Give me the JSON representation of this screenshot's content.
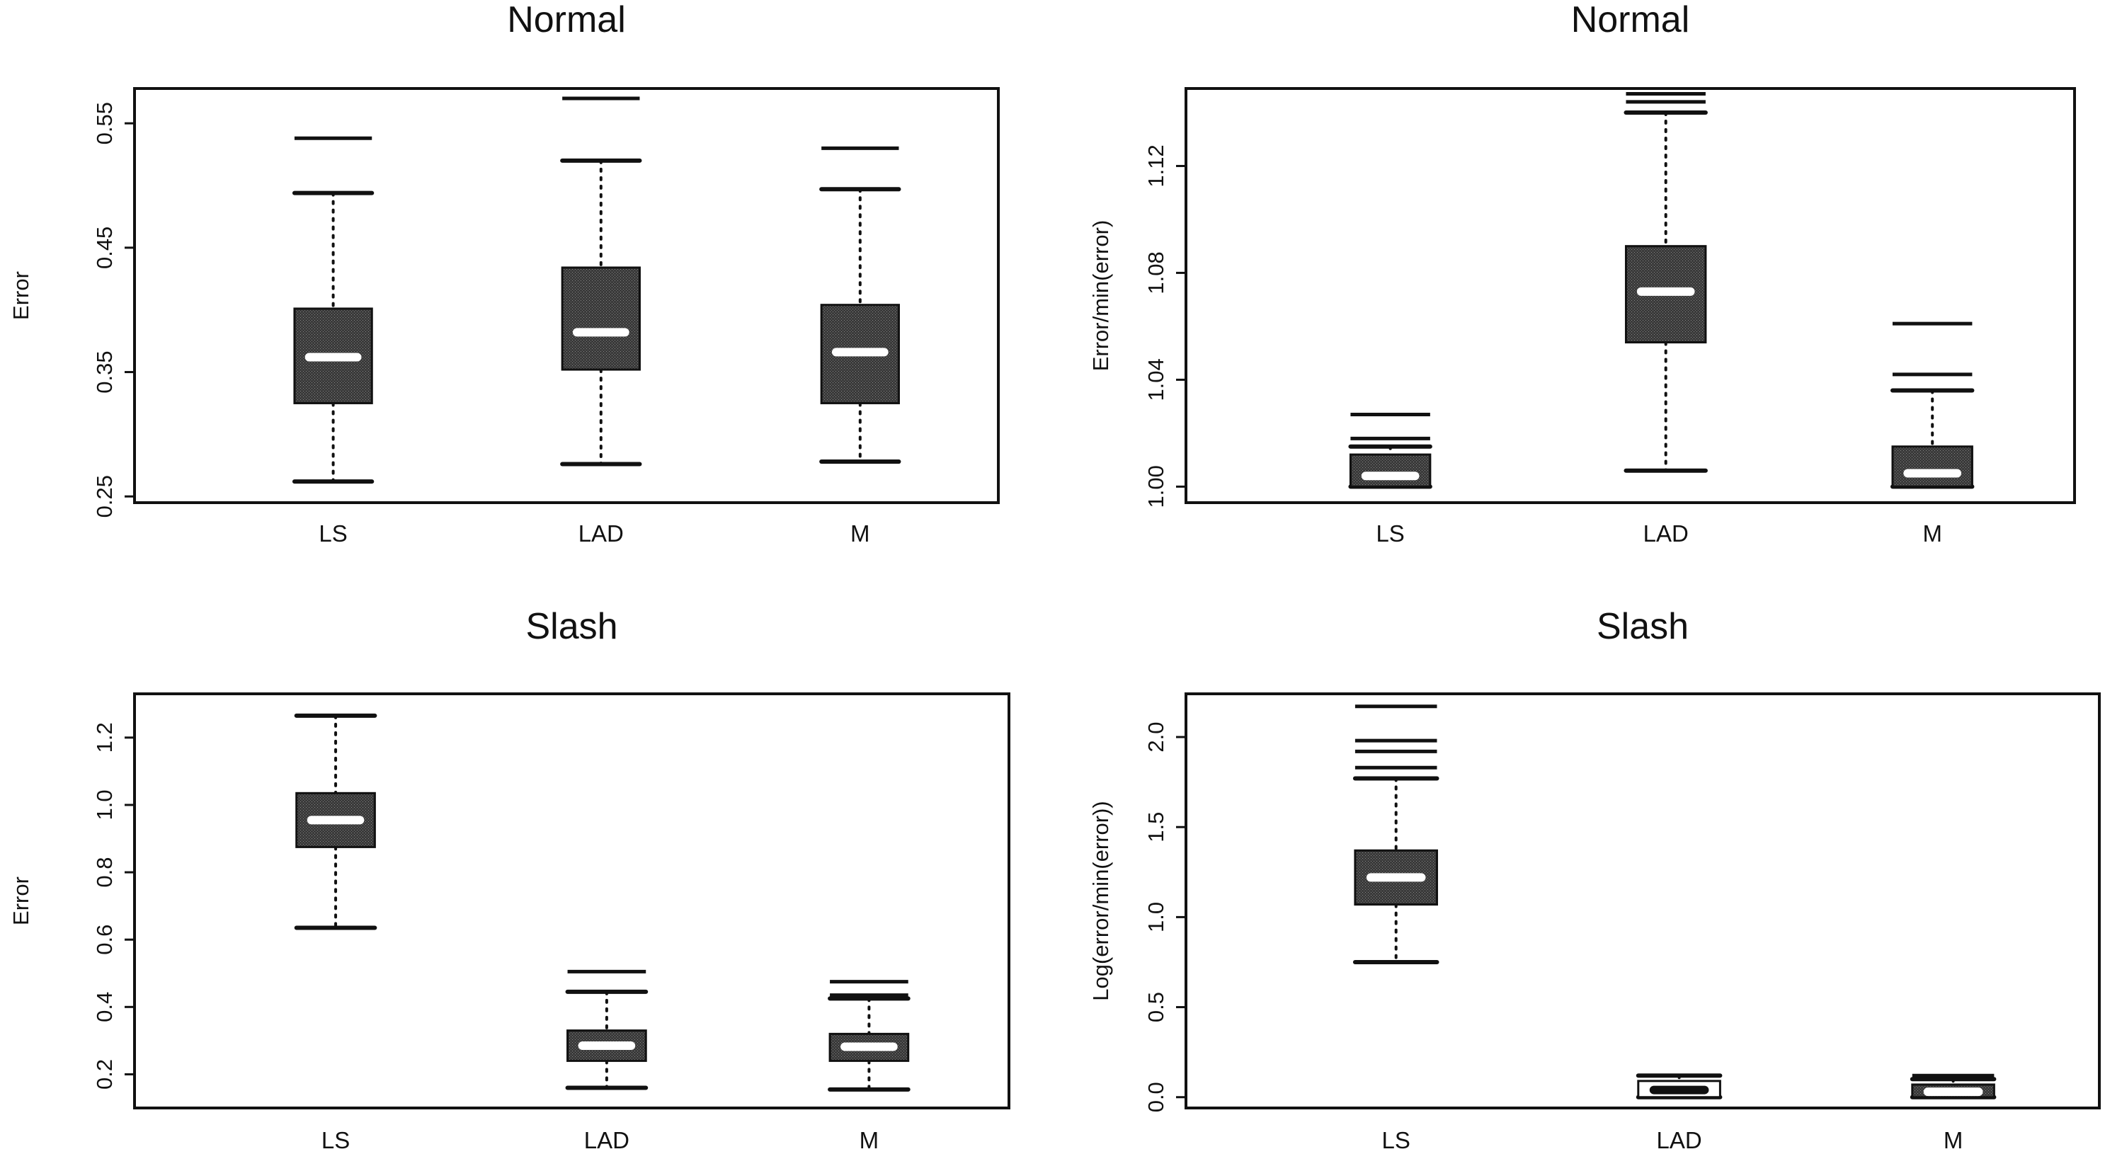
{
  "chart_data": [
    {
      "type": "box",
      "title": "Normal",
      "xlabel": "",
      "ylabel": "Error",
      "categories": [
        "LS",
        "LAD",
        "M"
      ],
      "ylim": [
        0.245,
        0.578
      ],
      "yticks": [
        0.25,
        0.35,
        0.45,
        0.55
      ],
      "ytick_labels": [
        "0.25",
        "0.35",
        "0.45",
        "0.55"
      ],
      "boxes": [
        {
          "category": "LS",
          "lower_whisker": 0.262,
          "q1": 0.325,
          "median": 0.362,
          "q3": 0.401,
          "upper_whisker": 0.494,
          "outliers": [
            0.538
          ]
        },
        {
          "category": "LAD",
          "lower_whisker": 0.276,
          "q1": 0.352,
          "median": 0.382,
          "q3": 0.434,
          "upper_whisker": 0.52,
          "outliers": [
            0.57
          ]
        },
        {
          "category": "M",
          "lower_whisker": 0.278,
          "q1": 0.325,
          "median": 0.366,
          "q3": 0.404,
          "upper_whisker": 0.497,
          "outliers": [
            0.53
          ]
        }
      ],
      "grid": false,
      "legend": "none"
    },
    {
      "type": "box",
      "title": "Normal",
      "xlabel": "",
      "ylabel": "Error/min(error)",
      "categories": [
        "LS",
        "LAD",
        "M"
      ],
      "ylim": [
        0.994,
        1.149
      ],
      "yticks": [
        1.0,
        1.04,
        1.08,
        1.12
      ],
      "ytick_labels": [
        "1.00",
        "1.04",
        "1.08",
        "1.12"
      ],
      "boxes": [
        {
          "category": "LS",
          "lower_whisker": 1.0,
          "q1": 1.0,
          "median": 1.004,
          "q3": 1.012,
          "upper_whisker": 1.015,
          "outliers": [
            1.018,
            1.027
          ]
        },
        {
          "category": "LAD",
          "lower_whisker": 1.006,
          "q1": 1.054,
          "median": 1.073,
          "q3": 1.09,
          "upper_whisker": 1.14,
          "outliers": [
            1.144,
            1.147
          ]
        },
        {
          "category": "M",
          "lower_whisker": 1.0,
          "q1": 1.0,
          "median": 1.005,
          "q3": 1.015,
          "upper_whisker": 1.036,
          "outliers": [
            1.042,
            1.061
          ]
        }
      ],
      "grid": false,
      "legend": "none"
    },
    {
      "type": "box",
      "title": "Slash",
      "xlabel": "",
      "ylabel": "Error",
      "categories": [
        "LS",
        "LAD",
        "M"
      ],
      "ylim": [
        0.1,
        1.33
      ],
      "yticks": [
        0.2,
        0.4,
        0.6,
        0.8,
        1.0,
        1.2
      ],
      "ytick_labels": [
        "0.2",
        "0.4",
        "0.6",
        "0.8",
        "1.0",
        "1.2"
      ],
      "boxes": [
        {
          "category": "LS",
          "lower_whisker": 0.635,
          "q1": 0.875,
          "median": 0.955,
          "q3": 1.035,
          "upper_whisker": 1.265,
          "outliers": []
        },
        {
          "category": "LAD",
          "lower_whisker": 0.16,
          "q1": 0.24,
          "median": 0.285,
          "q3": 0.33,
          "upper_whisker": 0.445,
          "outliers": [
            0.505
          ]
        },
        {
          "category": "M",
          "lower_whisker": 0.155,
          "q1": 0.24,
          "median": 0.282,
          "q3": 0.32,
          "upper_whisker": 0.425,
          "outliers": [
            0.435,
            0.475
          ]
        }
      ],
      "grid": false,
      "legend": "none"
    },
    {
      "type": "box",
      "title": "Slash",
      "xlabel": "",
      "ylabel": "Log(error/min(error))",
      "categories": [
        "LS",
        "LAD",
        "M"
      ],
      "ylim": [
        -0.06,
        2.24
      ],
      "yticks": [
        0.0,
        0.5,
        1.0,
        1.5,
        2.0
      ],
      "ytick_labels": [
        "0.0",
        "0.5",
        "1.0",
        "1.5",
        "2.0"
      ],
      "boxes": [
        {
          "category": "LS",
          "lower_whisker": 0.75,
          "q1": 1.07,
          "median": 1.22,
          "q3": 1.37,
          "upper_whisker": 1.77,
          "outliers": [
            1.83,
            1.92,
            1.98,
            2.17
          ]
        },
        {
          "category": "LAD",
          "lower_whisker": 0.0,
          "q1": 0.0,
          "median": 0.04,
          "q3": 0.09,
          "upper_whisker": 0.12,
          "outliers": []
        },
        {
          "category": "M",
          "lower_whisker": 0.0,
          "q1": 0.0,
          "median": 0.03,
          "q3": 0.07,
          "upper_whisker": 0.1,
          "outliers": [
            0.12
          ]
        }
      ],
      "grid": false,
      "legend": "none"
    }
  ]
}
